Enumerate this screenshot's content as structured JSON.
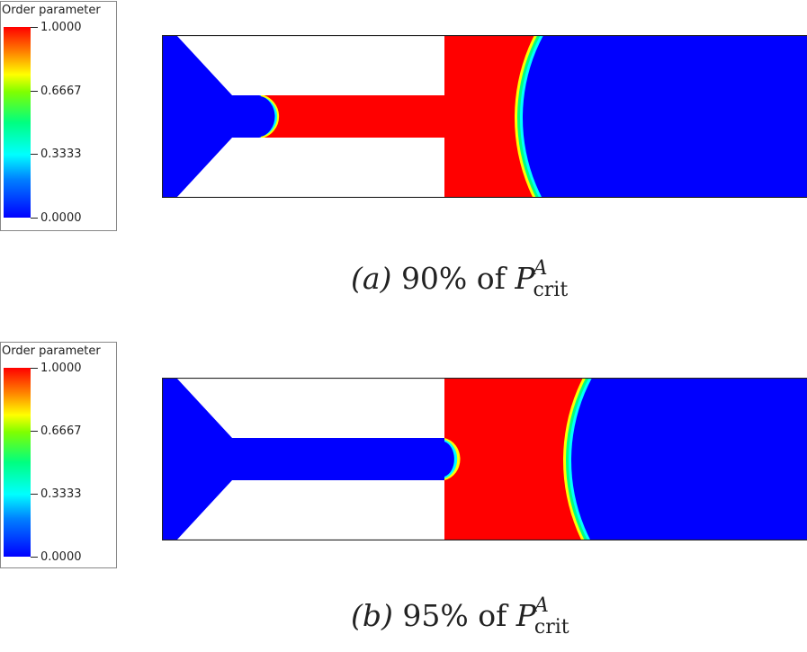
{
  "panels": [
    {
      "colorbar": {
        "title": "Order parameter",
        "ticks": [
          "1.0000",
          "0.6667",
          "0.3333",
          "0.0000"
        ]
      },
      "caption": {
        "label": "(a)",
        "text": "90% of",
        "symbol": "P",
        "sup": "A",
        "sub": "crit"
      },
      "front_position": 0.43
    },
    {
      "colorbar": {
        "title": "Order parameter",
        "ticks": [
          "1.0000",
          "0.6667",
          "0.3333",
          "0.0000"
        ]
      },
      "caption": {
        "label": "(b)",
        "text": "95% of",
        "symbol": "P",
        "sup": "A",
        "sub": "crit"
      },
      "front_position": 0.5
    }
  ],
  "colors": {
    "blue": "#0000ff",
    "red": "#ff0000",
    "void": "#ffffff",
    "outline": "#222222"
  }
}
